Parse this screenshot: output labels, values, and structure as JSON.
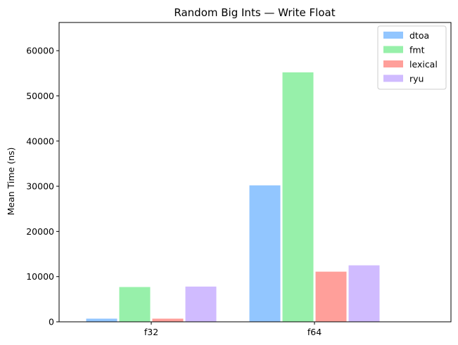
{
  "chart_data": {
    "type": "bar",
    "title": "Random Big Ints — Write Float",
    "xlabel": "",
    "ylabel": "Mean Time (ns)",
    "categories": [
      "f32",
      "f64"
    ],
    "series": [
      {
        "name": "dtoa",
        "color": "#92c6ff",
        "values": [
          700,
          30200
        ]
      },
      {
        "name": "fmt",
        "color": "#97f0aa",
        "values": [
          7700,
          55200
        ]
      },
      {
        "name": "lexical",
        "color": "#ff9f9a",
        "values": [
          700,
          11100
        ]
      },
      {
        "name": "ryu",
        "color": "#d0bbff",
        "values": [
          7800,
          12500
        ]
      }
    ],
    "ylim": [
      0,
      66240
    ],
    "yticks": [
      0,
      10000,
      20000,
      30000,
      40000,
      50000,
      60000
    ],
    "grid": false,
    "legend_position": "top-right"
  }
}
